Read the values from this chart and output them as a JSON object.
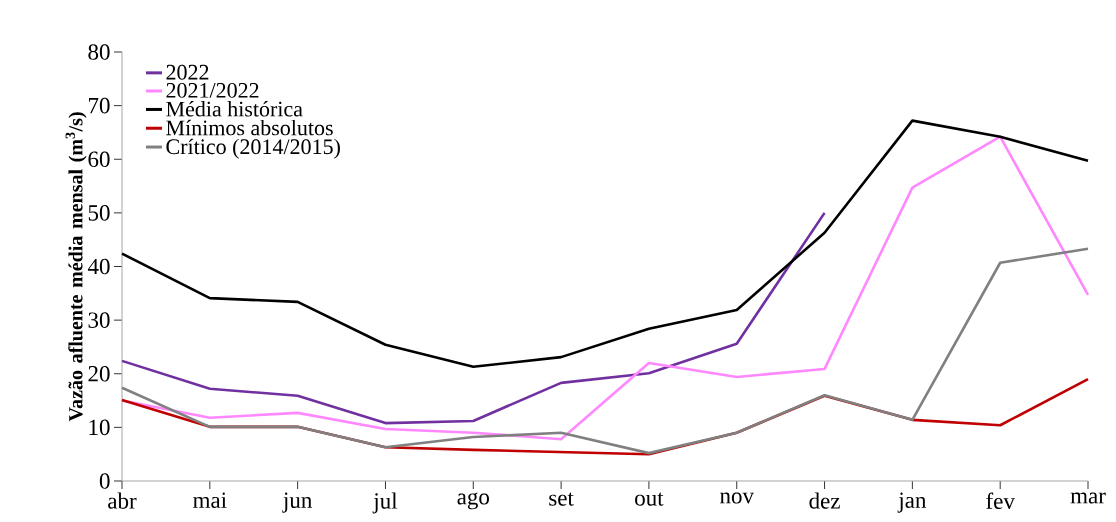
{
  "chart_data": {
    "type": "line",
    "ylabel": "Vazão afluente média mensal (m$^{3}$/s)",
    "categories": [
      "abr",
      "mai",
      "jun",
      "jul",
      "ago",
      "set",
      "out",
      "nov",
      "dez",
      "jan",
      "fev",
      "mar"
    ],
    "series": [
      {
        "name": "2022",
        "color": "#7030a0",
        "values": [
          22.4,
          17.2,
          15.9,
          10.8,
          11.2,
          18.3,
          20.1,
          25.6,
          50.0,
          null,
          null,
          null
        ]
      },
      {
        "name": "2021/2022",
        "color": "#ff87ff",
        "values": [
          15.0,
          11.8,
          12.7,
          9.7,
          9.0,
          7.8,
          22.0,
          19.4,
          20.9,
          54.7,
          64.2,
          34.7
        ]
      },
      {
        "name": "Média histórica",
        "color": "#000000",
        "values": [
          42.4,
          34.1,
          33.4,
          25.4,
          21.3,
          23.1,
          28.4,
          31.9,
          46.3,
          67.2,
          64.2,
          59.7
        ]
      },
      {
        "name": "Mínimos absolutos",
        "color": "#c00000",
        "values": [
          15.1,
          10.1,
          10.1,
          6.3,
          5.8,
          5.4,
          5.0,
          9.0,
          15.9,
          11.4,
          10.4,
          19.0
        ]
      },
      {
        "name": "Crítico (2014/2015)",
        "color": "#808080",
        "values": [
          17.4,
          10.1,
          10.1,
          6.3,
          8.2,
          9.0,
          5.2,
          9.0,
          16.0,
          11.4,
          40.7,
          43.3
        ]
      }
    ],
    "ylim": [
      0,
      80
    ],
    "yticks": [
      0,
      10,
      20,
      30,
      40,
      50,
      60,
      70,
      80
    ],
    "grid": false,
    "legend": "top left",
    "marker": "none",
    "line_style": "solid"
  }
}
